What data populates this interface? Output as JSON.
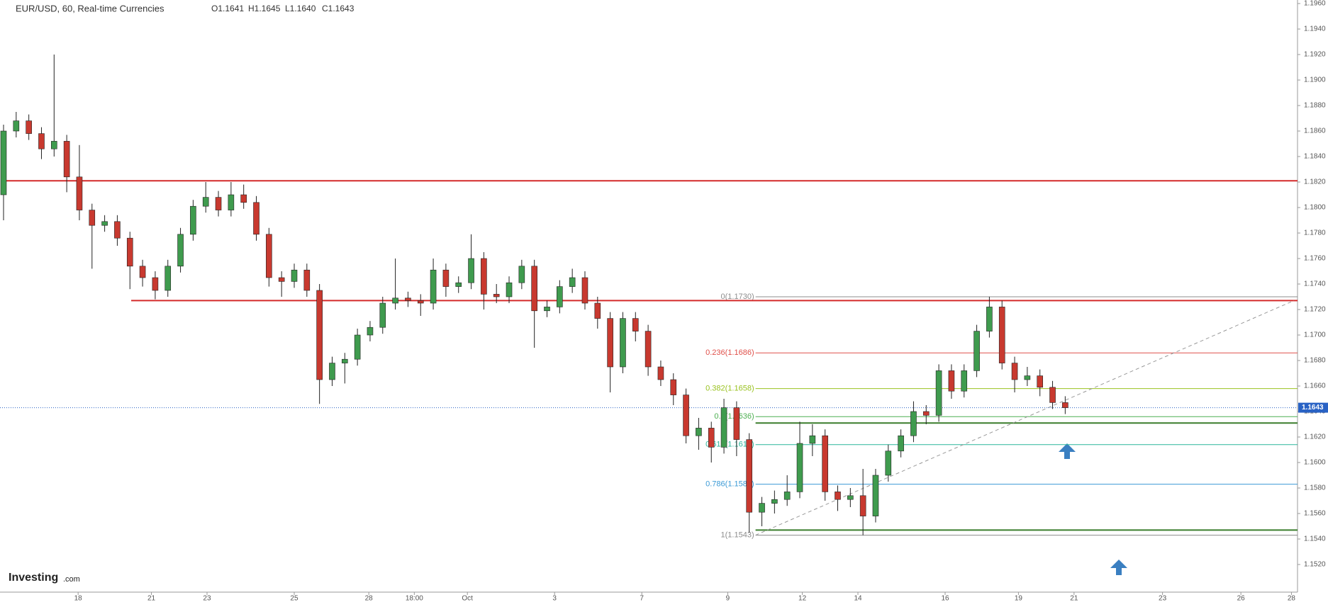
{
  "header": {
    "title": "EUR/USD, 60, Real-time Currencies",
    "ohlc": [
      "O1.1641",
      "H1.1645",
      "L1.1640",
      "C1.1643"
    ]
  },
  "logo": [
    "Investing",
    ".com"
  ],
  "chart_data": {
    "type": "candlestick",
    "open": [
      1.181,
      1.186,
      1.1868,
      1.1858,
      1.1846,
      1.1852,
      1.1824,
      1.1798,
      1.1786,
      1.1789,
      1.1776,
      1.1754,
      1.1745,
      1.1735,
      1.1754,
      1.1779,
      1.1801,
      1.1808,
      1.1798,
      1.181,
      1.1804,
      1.1779,
      1.1745,
      1.1742,
      1.1751,
      1.1735,
      1.1665,
      1.1678,
      1.1681,
      1.17,
      1.1706,
      1.1725,
      1.1729,
      1.1727,
      1.1725,
      1.1751,
      1.1738,
      1.1741,
      1.176,
      1.1732,
      1.173,
      1.1741,
      1.1754,
      1.1719,
      1.1722,
      1.1738,
      1.1745,
      1.1725,
      1.1713,
      1.1675,
      1.1713,
      1.1703,
      1.1675,
      1.1665,
      1.1653,
      1.1621,
      1.1627,
      1.1612,
      1.1643,
      1.1618,
      1.1561,
      1.1568,
      1.1571,
      1.1577,
      1.1615,
      1.1621,
      1.1577,
      1.1571,
      1.1574,
      1.1558,
      1.159,
      1.1609,
      1.1621,
      1.164,
      1.1637,
      1.1672,
      1.1656,
      1.1672,
      1.1703,
      1.1722,
      1.1678,
      1.1665,
      1.1668,
      1.1659,
      1.1647
    ],
    "high": [
      1.1865,
      1.1875,
      1.1873,
      1.1863,
      1.192,
      1.1857,
      1.1849,
      1.1803,
      1.1794,
      1.1794,
      1.1781,
      1.1759,
      1.175,
      1.1759,
      1.1784,
      1.1806,
      1.182,
      1.1813,
      1.182,
      1.1818,
      1.1809,
      1.1784,
      1.175,
      1.1756,
      1.1756,
      1.174,
      1.1683,
      1.1686,
      1.1705,
      1.1711,
      1.173,
      1.176,
      1.1734,
      1.1732,
      1.176,
      1.1756,
      1.1746,
      1.1779,
      1.1765,
      1.174,
      1.1746,
      1.1759,
      1.1759,
      1.1727,
      1.1743,
      1.1752,
      1.175,
      1.173,
      1.1718,
      1.1718,
      1.1718,
      1.1708,
      1.168,
      1.167,
      1.1658,
      1.1635,
      1.1632,
      1.165,
      1.1648,
      1.1623,
      1.1573,
      1.1578,
      1.159,
      1.1632,
      1.163,
      1.1626,
      1.1582,
      1.158,
      1.1595,
      1.1595,
      1.1614,
      1.1626,
      1.1648,
      1.1645,
      1.1677,
      1.1677,
      1.1677,
      1.1708,
      1.173,
      1.1727,
      1.1683,
      1.1675,
      1.1673,
      1.1664,
      1.1652
    ],
    "low": [
      1.179,
      1.1855,
      1.1853,
      1.1838,
      1.184,
      1.1812,
      1.179,
      1.1752,
      1.1781,
      1.177,
      1.1736,
      1.1738,
      1.1728,
      1.173,
      1.1749,
      1.1774,
      1.1796,
      1.1793,
      1.1793,
      1.1799,
      1.1774,
      1.1738,
      1.173,
      1.1737,
      1.173,
      1.1646,
      1.166,
      1.1662,
      1.1676,
      1.1695,
      1.1701,
      1.172,
      1.1722,
      1.1715,
      1.172,
      1.173,
      1.1733,
      1.1736,
      1.172,
      1.1725,
      1.1725,
      1.1736,
      1.169,
      1.1714,
      1.1717,
      1.1733,
      1.172,
      1.1705,
      1.1655,
      1.167,
      1.1695,
      1.1668,
      1.166,
      1.1645,
      1.1615,
      1.161,
      1.16,
      1.1607,
      1.1605,
      1.1545,
      1.155,
      1.156,
      1.1566,
      1.1572,
      1.1605,
      1.157,
      1.1562,
      1.1565,
      1.1543,
      1.1553,
      1.1585,
      1.1604,
      1.1616,
      1.163,
      1.1632,
      1.165,
      1.1651,
      1.1667,
      1.1698,
      1.1673,
      1.1655,
      1.166,
      1.1652,
      1.1642,
      1.1638
    ],
    "close": [
      1.186,
      1.1868,
      1.1858,
      1.1846,
      1.1852,
      1.1824,
      1.1798,
      1.1786,
      1.1789,
      1.1776,
      1.1754,
      1.1745,
      1.1735,
      1.1754,
      1.1779,
      1.1801,
      1.1808,
      1.1798,
      1.181,
      1.1804,
      1.1779,
      1.1745,
      1.1742,
      1.1751,
      1.1735,
      1.1665,
      1.1678,
      1.1681,
      1.17,
      1.1706,
      1.1725,
      1.1729,
      1.1727,
      1.1725,
      1.1751,
      1.1738,
      1.1741,
      1.176,
      1.1732,
      1.173,
      1.1741,
      1.1754,
      1.1719,
      1.1722,
      1.1738,
      1.1745,
      1.1725,
      1.1713,
      1.1675,
      1.1713,
      1.1703,
      1.1675,
      1.1665,
      1.1653,
      1.1621,
      1.1627,
      1.1612,
      1.1643,
      1.1618,
      1.1561,
      1.1568,
      1.1571,
      1.1577,
      1.1615,
      1.1621,
      1.1577,
      1.1571,
      1.1574,
      1.1558,
      1.159,
      1.1609,
      1.1621,
      1.164,
      1.1637,
      1.1672,
      1.1656,
      1.1672,
      1.1703,
      1.1722,
      1.1678,
      1.1665,
      1.1668,
      1.1659,
      1.1647,
      1.1643
    ],
    "up_color": "#3f9b4e",
    "down_color": "#c8392f",
    "xlim": [
      0,
      102.1
    ],
    "xticks": [
      {
        "value": 5.9,
        "label": "18"
      },
      {
        "value": 11.7,
        "label": "21"
      },
      {
        "value": 16.1,
        "label": "23"
      },
      {
        "value": 23,
        "label": "25"
      },
      {
        "value": 28.9,
        "label": "28"
      },
      {
        "value": 32.5,
        "label": "18:00"
      },
      {
        "value": 36.7,
        "label": "Oct"
      },
      {
        "value": 43.6,
        "label": "3"
      },
      {
        "value": 50.5,
        "label": "7"
      },
      {
        "value": 57.3,
        "label": "9"
      },
      {
        "value": 63.2,
        "label": "12"
      },
      {
        "value": 67.6,
        "label": "14"
      },
      {
        "value": 74.5,
        "label": "16"
      },
      {
        "value": 80.3,
        "label": "19"
      },
      {
        "value": 84.7,
        "label": "21"
      },
      {
        "value": 91.7,
        "label": "23"
      },
      {
        "value": 97.9,
        "label": "26"
      },
      {
        "value": 101.9,
        "label": "28"
      }
    ],
    "ylim": [
      1.152,
      1.196
    ],
    "yticks": [
      {
        "value": 1.152,
        "label": "1.1520"
      },
      {
        "value": 1.154,
        "label": "1.1540"
      },
      {
        "value": 1.156,
        "label": "1.1560"
      },
      {
        "value": 1.158,
        "label": "1.1580"
      },
      {
        "value": 1.16,
        "label": "1.1600"
      },
      {
        "value": 1.162,
        "label": "1.1620"
      },
      {
        "value": 1.164,
        "label": "1.1640"
      },
      {
        "value": 1.166,
        "label": "1.1660"
      },
      {
        "value": 1.168,
        "label": "1.1680"
      },
      {
        "value": 1.17,
        "label": "1.1700"
      },
      {
        "value": 1.172,
        "label": "1.1720"
      },
      {
        "value": 1.174,
        "label": "1.1740"
      },
      {
        "value": 1.176,
        "label": "1.1760"
      },
      {
        "value": 1.178,
        "label": "1.1780"
      },
      {
        "value": 1.18,
        "label": "1.1800"
      },
      {
        "value": 1.182,
        "label": "1.1820"
      },
      {
        "value": 1.184,
        "label": "1.1840"
      },
      {
        "value": 1.186,
        "label": "1.1860"
      },
      {
        "value": 1.188,
        "label": "1.1880"
      },
      {
        "value": 1.19,
        "label": "1.1900"
      },
      {
        "value": 1.192,
        "label": "1.1920"
      },
      {
        "value": 1.194,
        "label": "1.1940"
      },
      {
        "value": 1.196,
        "label": "1.1960"
      }
    ],
    "hlines": [
      {
        "y": 1.1821,
        "x_start": 0,
        "color": "#d42a2a"
      },
      {
        "y": 1.1727,
        "x_start": 10.1,
        "color": "#d42a2a"
      },
      {
        "y": 1.1631,
        "x_start": 59.5,
        "color": "#3a7d2c"
      },
      {
        "y": 1.1547,
        "x_start": 59.5,
        "color": "#3a7d2c"
      }
    ],
    "fib_start": 59.5,
    "fib": [
      {
        "label": "0(1.1730)",
        "value": 1.173,
        "color": "#8c8c8c"
      },
      {
        "label": "0.236(1.1686)",
        "value": 1.1686,
        "color": "#e0504a"
      },
      {
        "label": "0.382(1.1658)",
        "value": 1.1658,
        "color": "#99c21f"
      },
      {
        "label": "0.5(1.1636)",
        "value": 1.1636,
        "color": "#4caf50"
      },
      {
        "label": "0.618(1.1614)",
        "value": 1.1614,
        "color": "#2bb59a"
      },
      {
        "label": "0.786(1.1583)",
        "value": 1.1583,
        "color": "#3b9ad6"
      },
      {
        "label": "1(1.1543)",
        "value": 1.1543,
        "color": "#8c8c8c"
      }
    ],
    "trendline": {
      "x": [
        59.5,
        102.1
      ],
      "y": [
        1.1543,
        1.1727
      ]
    },
    "last_price": 1.1643,
    "last_color": "#2962c4"
  }
}
